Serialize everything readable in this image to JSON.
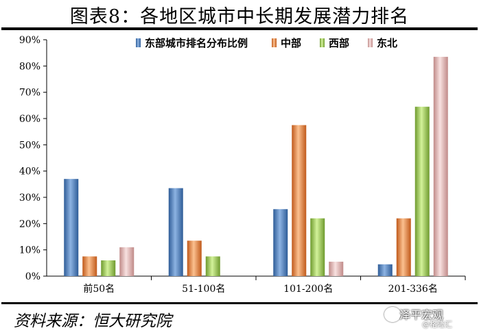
{
  "header": {
    "title": "图表8：各地区城市中长期发展潜力排名"
  },
  "footer": {
    "source": "资料来源：恒大研究院"
  },
  "watermark": {
    "main": "泽平宏观",
    "sub": "@格隆汇"
  },
  "chart_data": {
    "type": "bar",
    "categories": [
      "前50名",
      "51-100名",
      "101-200名",
      "201-336名"
    ],
    "series": [
      {
        "name": "东部城市排名分布比例",
        "color": "#4F81BD",
        "values": [
          37,
          33.5,
          25.5,
          4.5
        ]
      },
      {
        "name": "中部",
        "color": "#F79646",
        "values": [
          7.5,
          13.5,
          57.5,
          22
        ]
      },
      {
        "name": "西部",
        "color": "#9BBB59",
        "values": [
          6,
          7.5,
          22,
          64.5
        ]
      },
      {
        "name": "东北",
        "color": "#E6B9B8",
        "values": [
          11,
          0,
          5.5,
          83.5
        ]
      }
    ],
    "ylim": [
      0,
      90
    ],
    "yticks": [
      "0%",
      "10%",
      "20%",
      "30%",
      "40%",
      "50%",
      "60%",
      "70%",
      "80%",
      "90%"
    ],
    "grid": false,
    "legend": "top"
  }
}
